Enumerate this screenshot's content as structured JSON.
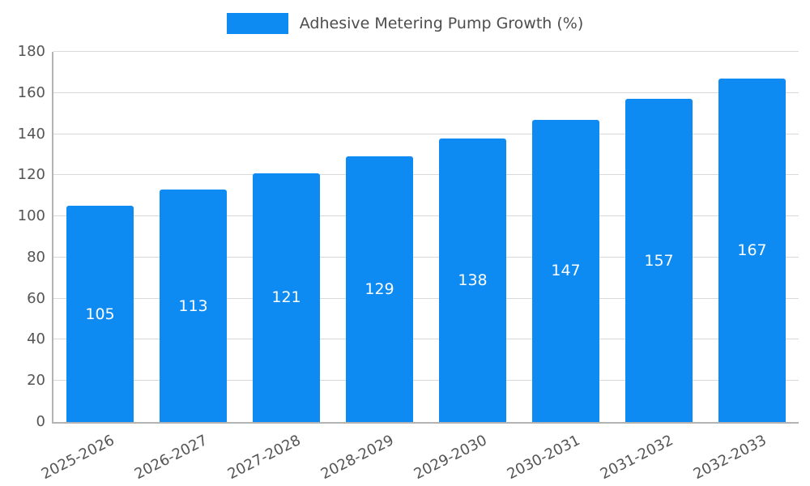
{
  "chart_data": {
    "type": "bar",
    "title": "Adhesive Metering Pump Growth (%)",
    "categories": [
      "2025-2026",
      "2026-2027",
      "2027-2028",
      "2028-2029",
      "2029-2030",
      "2030-2031",
      "2031-2032",
      "2032-2033"
    ],
    "values": [
      105,
      113,
      121,
      129,
      138,
      147,
      157,
      167
    ],
    "xlabel": "",
    "ylabel": "",
    "ylim": [
      0,
      180
    ],
    "yticks": [
      0,
      20,
      40,
      60,
      80,
      100,
      120,
      140,
      160,
      180
    ],
    "grid": true,
    "legend_position": "top-center",
    "bar_color": "#0d8bf3",
    "value_label_color": "#ffffff",
    "axis_text_color": "#555555",
    "grid_color": "#d9d9d9",
    "axis_line_color": "#b3b3b3"
  }
}
